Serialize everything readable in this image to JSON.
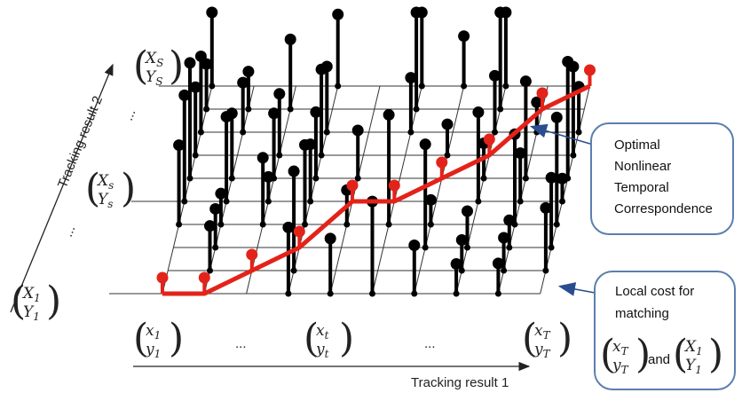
{
  "axes": {
    "x_label": "Tracking result 1",
    "y_label": "Tracking result 2"
  },
  "x_ticks": [
    {
      "top": "x",
      "top_sub": "1",
      "bottom": "y",
      "bottom_sub": "1"
    },
    {
      "ellipsis": "..."
    },
    {
      "top": "x",
      "top_sub": "t",
      "bottom": "y",
      "bottom_sub": "t"
    },
    {
      "ellipsis": "..."
    },
    {
      "top": "x",
      "top_sub": "T",
      "bottom": "y",
      "bottom_sub": "T"
    }
  ],
  "y_ticks": [
    {
      "top": "X",
      "top_sub": "1",
      "bottom": "Y",
      "bottom_sub": "1"
    },
    {
      "ellipsis": "..."
    },
    {
      "top": "X",
      "top_sub": "s",
      "bottom": "Y",
      "bottom_sub": "s"
    },
    {
      "ellipsis": "..."
    },
    {
      "top": "X",
      "top_sub": "S",
      "bottom": "Y",
      "bottom_sub": "S"
    }
  ],
  "callouts": {
    "optimal": {
      "lines": [
        "Optimal",
        "Nonlinear",
        "Temporal",
        "Correspondence"
      ]
    },
    "local_cost": {
      "lines": [
        "Local cost for",
        "matching"
      ],
      "formula_and": "and",
      "formula_left_top": "x",
      "formula_left_top_sub": "T",
      "formula_left_bottom": "y",
      "formula_left_bottom_sub": "T",
      "formula_right_top": "X",
      "formula_right_top_sub": "1",
      "formula_right_bottom": "Y",
      "formula_right_bottom_sub": "1"
    }
  },
  "colors": {
    "grid": "#333333",
    "node": "#000000",
    "path": "#e3231a",
    "path_node": "#e3231a",
    "callout_border": "#5b7fae",
    "arrow": "#2a4d8f"
  }
}
